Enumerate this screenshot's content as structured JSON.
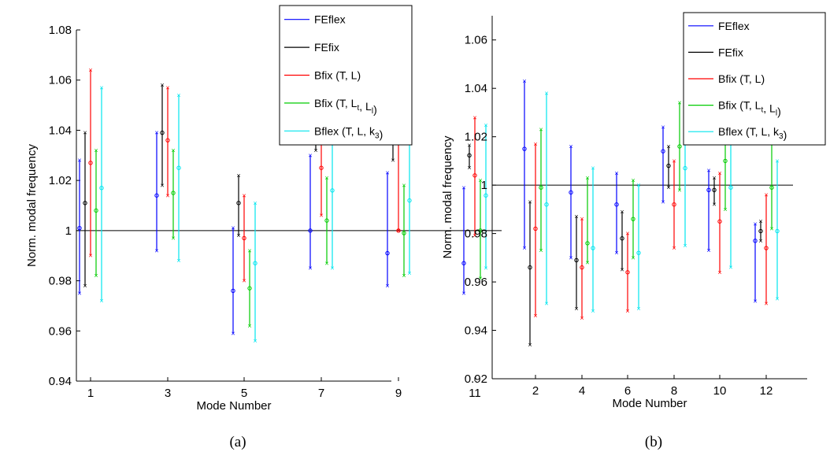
{
  "chart_data": [
    {
      "type": "scatter",
      "caption": "(a)",
      "xlabel": "Mode Number",
      "ylabel": "Norm. modal frequency",
      "ylim": [
        0.94,
        1.08
      ],
      "yticks": [
        "0.94",
        "0.96",
        "0.98",
        "1",
        "1.02",
        "1.04",
        "1.06",
        "1.08"
      ],
      "categories": [
        "1",
        "3",
        "5",
        "7",
        "9",
        "11"
      ],
      "reference_line": 1,
      "legend_position": "top-right",
      "series": [
        {
          "name": "FEflex",
          "color": "#0000ff",
          "mean": [
            1.001,
            1.014,
            0.976,
            1.0,
            0.991,
            0.987
          ],
          "min": [
            0.975,
            0.992,
            0.959,
            0.985,
            0.978,
            0.975
          ],
          "max": [
            1.028,
            1.039,
            1.001,
            1.03,
            1.023,
            1.017
          ]
        },
        {
          "name": "FEfix",
          "color": "#000000",
          "mean": [
            1.011,
            1.039,
            1.011,
            1.041,
            1.035,
            1.03
          ],
          "min": [
            0.978,
            1.018,
            0.998,
            1.032,
            1.028,
            1.025
          ],
          "max": [
            1.039,
            1.058,
            1.022,
            1.049,
            1.04,
            1.034
          ]
        },
        {
          "name": "Bfix (T,  L)",
          "color": "#ff0000",
          "mean": [
            1.027,
            1.036,
            0.997,
            1.025,
            1.0,
            1.022
          ],
          "min": [
            0.99,
            1.014,
            0.98,
            1.006,
            1.0,
            0.998
          ],
          "max": [
            1.064,
            1.057,
            1.014,
            1.043,
            1.042,
            1.045
          ]
        },
        {
          "name": "Bfix (T,  Lt,  Ll)",
          "color": "#00cc00",
          "mean": [
            1.008,
            1.015,
            0.977,
            1.004,
            0.999,
            1.0
          ],
          "min": [
            0.982,
            0.997,
            0.962,
            0.987,
            0.982,
            0.981
          ],
          "max": [
            1.032,
            1.032,
            0.992,
            1.021,
            1.018,
            1.02
          ]
        },
        {
          "name": "Bflex (T,  L,   k3)",
          "color": "#00e5ee",
          "mean": [
            1.017,
            1.025,
            0.987,
            1.016,
            1.012,
            1.014
          ],
          "min": [
            0.972,
            0.988,
            0.956,
            0.985,
            0.983,
            0.985
          ],
          "max": [
            1.057,
            1.054,
            1.011,
            1.041,
            1.04,
            1.042
          ]
        }
      ]
    },
    {
      "type": "scatter",
      "caption": "(b)",
      "xlabel": "Mode Number",
      "ylabel": "Norm. modal frequency",
      "ylim": [
        0.92,
        1.07
      ],
      "yticks": [
        "0.92",
        "0.94",
        "0.96",
        "0.98",
        "1",
        "1.02",
        "1.04",
        "1.06"
      ],
      "categories": [
        "2",
        "4",
        "6",
        "8",
        "10",
        "12"
      ],
      "reference_line": 1,
      "legend_position": "top-right",
      "series": [
        {
          "name": "FEflex",
          "color": "#0000ff",
          "mean": [
            1.015,
            0.997,
            0.992,
            1.014,
            0.998,
            0.977
          ],
          "min": [
            0.974,
            0.97,
            0.972,
            0.993,
            0.973,
            0.952
          ],
          "max": [
            1.043,
            1.016,
            1.005,
            1.024,
            1.006,
            0.984
          ]
        },
        {
          "name": "FEfix",
          "color": "#000000",
          "mean": [
            0.966,
            0.969,
            0.978,
            1.008,
            0.998,
            0.981
          ],
          "min": [
            0.934,
            0.949,
            0.965,
            0.999,
            0.992,
            0.977
          ],
          "max": [
            0.993,
            0.987,
            0.989,
            1.016,
            1.003,
            0.985
          ]
        },
        {
          "name": "Bfix (T,  L)",
          "color": "#ff0000",
          "mean": [
            0.982,
            0.966,
            0.964,
            0.992,
            0.985,
            0.974
          ],
          "min": [
            0.946,
            0.945,
            0.948,
            0.974,
            0.964,
            0.951
          ],
          "max": [
            1.017,
            0.986,
            0.98,
            1.01,
            1.005,
            0.996
          ]
        },
        {
          "name": "Bfix (T,  Lt,  Ll)",
          "color": "#00cc00",
          "mean": [
            0.999,
            0.976,
            0.986,
            1.016,
            1.01,
            0.999
          ],
          "min": [
            0.973,
            0.968,
            0.97,
            0.998,
            0.99,
            0.982
          ],
          "max": [
            1.023,
            1.003,
            1.002,
            1.034,
            1.028,
            1.018
          ]
        },
        {
          "name": "Bflex (T,  L,   k3)",
          "color": "#00e5ee",
          "mean": [
            0.992,
            0.974,
            0.972,
            1.007,
            0.999,
            0.981
          ],
          "min": [
            0.951,
            0.948,
            0.949,
            0.975,
            0.966,
            0.953
          ],
          "max": [
            1.038,
            1.007,
            1.0,
            1.029,
            1.021,
            1.01
          ]
        }
      ]
    }
  ]
}
